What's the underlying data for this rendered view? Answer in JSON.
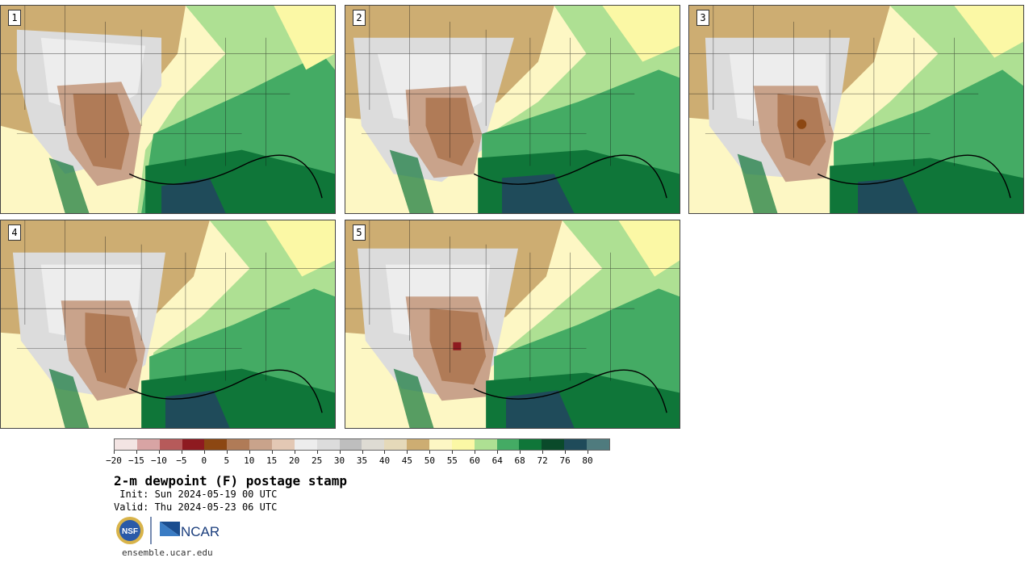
{
  "panels": [
    {
      "label": "1"
    },
    {
      "label": "2"
    },
    {
      "label": "3"
    },
    {
      "label": "4"
    },
    {
      "label": "5"
    }
  ],
  "colorbar": {
    "colors": [
      "#f3e4e3",
      "#d8a4a4",
      "#b65a5a",
      "#8e1a20",
      "#8c4712",
      "#b07b57",
      "#c9a38b",
      "#e3c8b4",
      "#ededed",
      "#dcdcdc",
      "#bebebe",
      "#dedbd3",
      "#e5d9b9",
      "#cdad72",
      "#fdf7c4",
      "#fbf8a5",
      "#aee093",
      "#44ab64",
      "#0f7639",
      "#0a4a2a",
      "#1f4b5a",
      "#4f7b7e"
    ],
    "tick_labels": [
      "−20",
      "−15",
      "−10",
      "−5",
      "0",
      "5",
      "10",
      "15",
      "20",
      "25",
      "30",
      "35",
      "40",
      "45",
      "50",
      "55",
      "60",
      "64",
      "68",
      "72",
      "76",
      "80"
    ]
  },
  "title": "2-m dewpoint (F) postage stamp",
  "init_line": " Init: Sun 2024-05-19 00 UTC",
  "valid_line": "Valid: Thu 2024-05-23 06 UTC",
  "logos": {
    "nsf": "NSF",
    "ncar": "NCAR"
  },
  "site": "ensemble.ucar.edu"
}
